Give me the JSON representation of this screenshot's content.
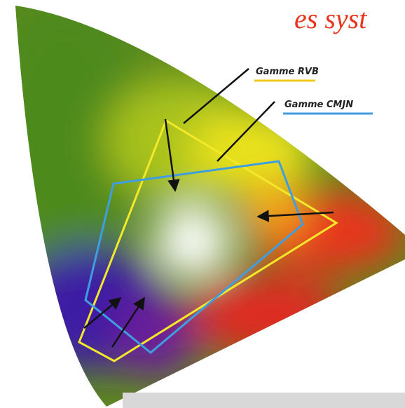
{
  "header": {
    "title": "es syst"
  },
  "labels": [
    {
      "text": "Gamme RVB"
    },
    {
      "text": "Gamme CMJN"
    }
  ]
}
